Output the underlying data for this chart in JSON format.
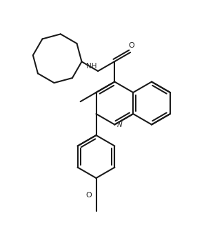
{
  "bg_color": "#ffffff",
  "line_color": "#1a1a1a",
  "line_width": 1.5,
  "figsize": [
    3.12,
    3.58
  ],
  "dpi": 100,
  "xlim": [
    0,
    10
  ],
  "ylim": [
    0,
    11.5
  ]
}
